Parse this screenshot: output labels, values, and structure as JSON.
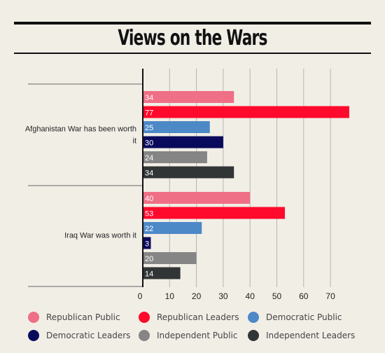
{
  "title": "Views on the Wars",
  "chart_data": {
    "type": "bar",
    "orientation": "horizontal",
    "title": "Views on the Wars",
    "categories": [
      "Afghanistan War has been worth it",
      "Iraq War was worth it"
    ],
    "category_lines": [
      [
        "Afghanistan War has been worth",
        "it"
      ],
      [
        "Iraq War was worth it"
      ]
    ],
    "series": [
      {
        "name": "Republican Public",
        "color": "#ef6f86",
        "values": [
          34,
          40
        ]
      },
      {
        "name": "Republican Leaders",
        "color": "#ff0a2c",
        "values": [
          77,
          53
        ]
      },
      {
        "name": "Democratic Public",
        "color": "#4d88c7",
        "values": [
          25,
          22
        ]
      },
      {
        "name": "Democratic Leaders",
        "color": "#0a0a5c",
        "values": [
          30,
          3
        ]
      },
      {
        "name": "Independent Public",
        "color": "#858585",
        "values": [
          24,
          20
        ]
      },
      {
        "name": "Independent Leaders",
        "color": "#323535",
        "values": [
          34,
          14
        ]
      }
    ],
    "xlim": [
      0,
      80
    ],
    "xticks": [
      0,
      10,
      20,
      30,
      40,
      50,
      60,
      70
    ],
    "grid": true,
    "legend_position": "bottom"
  }
}
